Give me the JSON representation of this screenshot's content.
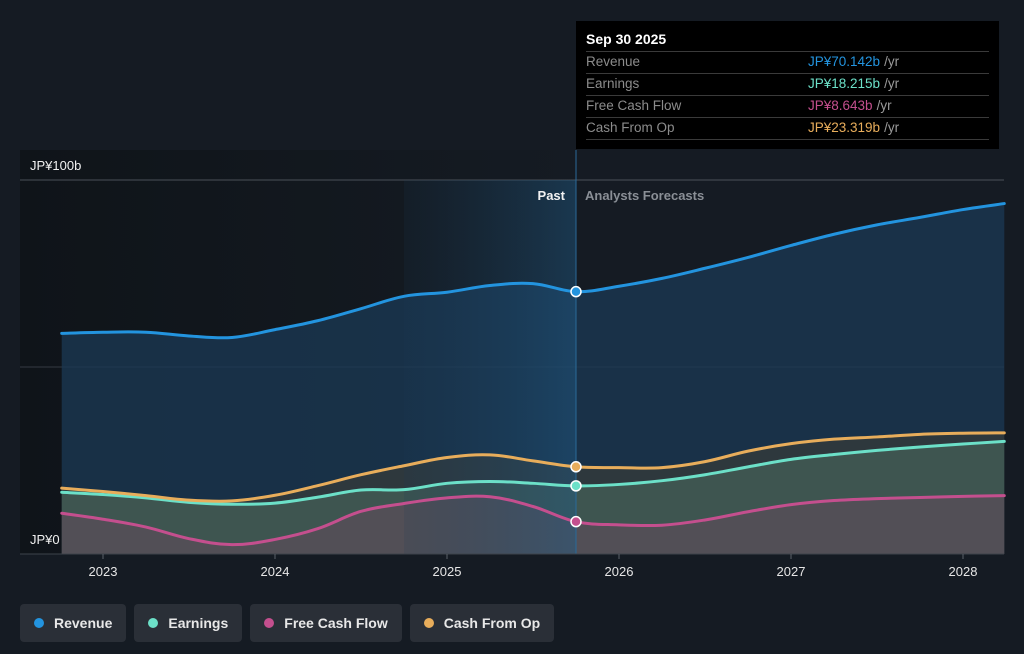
{
  "tooltip": {
    "date": "Sep 30 2025",
    "rows": [
      {
        "name": "Revenue",
        "value": "JP¥70.142b",
        "unit": "/yr",
        "color": "#2394df"
      },
      {
        "name": "Earnings",
        "value": "JP¥18.215b",
        "unit": "/yr",
        "color": "#6ce0c8"
      },
      {
        "name": "Free Cash Flow",
        "value": "JP¥8.643b",
        "unit": "/yr",
        "color": "#c44f8e"
      },
      {
        "name": "Cash From Op",
        "value": "JP¥23.319b",
        "unit": "/yr",
        "color": "#e8ad5b"
      }
    ]
  },
  "legend": [
    {
      "label": "Revenue",
      "color": "#2394df"
    },
    {
      "label": "Earnings",
      "color": "#6ce0c8"
    },
    {
      "label": "Free Cash Flow",
      "color": "#c44f8e"
    },
    {
      "label": "Cash From Op",
      "color": "#e8ad5b"
    }
  ],
  "chart_data": {
    "type": "line",
    "title": "",
    "xlabel": "",
    "ylabel": "",
    "currency_unit": "JP¥ billions",
    "x_ticks": [
      "2023",
      "2024",
      "2025",
      "2026",
      "2027",
      "2028"
    ],
    "y_tick_labels": [
      "JP¥0",
      "JP¥100b"
    ],
    "ylim": [
      0,
      100
    ],
    "xlim": [
      2022.55,
      2028.25
    ],
    "grid": true,
    "legend_position": "bottom-left",
    "annotations": {
      "past_label": "Past",
      "forecast_label": "Analysts Forecasts",
      "divider_x": 2025.75,
      "highlight_start_x": 2024.75
    },
    "x": [
      2022.76,
      2023.0,
      2023.25,
      2023.5,
      2023.75,
      2024.0,
      2024.25,
      2024.5,
      2024.75,
      2025.0,
      2025.25,
      2025.5,
      2025.75,
      2026.0,
      2026.25,
      2026.5,
      2026.75,
      2027.0,
      2027.25,
      2027.5,
      2027.75,
      2028.0,
      2028.24
    ],
    "series": [
      {
        "name": "Revenue",
        "color": "#2394df",
        "values": [
          59.0,
          59.3,
          59.3,
          58.3,
          57.9,
          60.0,
          62.4,
          65.6,
          68.9,
          70.0,
          71.8,
          72.3,
          70.142,
          71.6,
          73.7,
          76.4,
          79.3,
          82.5,
          85.5,
          88.0,
          90.0,
          92.1,
          93.7
        ]
      },
      {
        "name": "Earnings",
        "color": "#6ce0c8",
        "values": [
          16.5,
          15.9,
          15.0,
          13.8,
          13.3,
          13.6,
          15.2,
          17.1,
          17.2,
          18.9,
          19.4,
          18.9,
          18.215,
          18.6,
          19.6,
          21.2,
          23.3,
          25.3,
          26.6,
          27.7,
          28.6,
          29.4,
          30.1
        ]
      },
      {
        "name": "Free Cash Flow",
        "color": "#c44f8e",
        "values": [
          10.9,
          9.3,
          7.2,
          4.1,
          2.5,
          3.9,
          6.8,
          11.4,
          13.5,
          15.0,
          15.3,
          12.7,
          8.643,
          7.8,
          7.7,
          9.1,
          11.3,
          13.2,
          14.3,
          14.8,
          15.1,
          15.4,
          15.6
        ]
      },
      {
        "name": "Cash From Op",
        "color": "#e8ad5b",
        "values": [
          17.6,
          16.7,
          15.6,
          14.4,
          14.2,
          15.7,
          18.3,
          21.2,
          23.6,
          25.8,
          26.5,
          24.9,
          23.319,
          23.1,
          23.1,
          24.7,
          27.5,
          29.5,
          30.7,
          31.3,
          32.0,
          32.3,
          32.4
        ]
      }
    ],
    "highlighted_point": {
      "x": 2025.75,
      "values": {
        "Revenue": 70.142,
        "Earnings": 18.215,
        "Free Cash Flow": 8.643,
        "Cash From Op": 23.319
      }
    }
  }
}
